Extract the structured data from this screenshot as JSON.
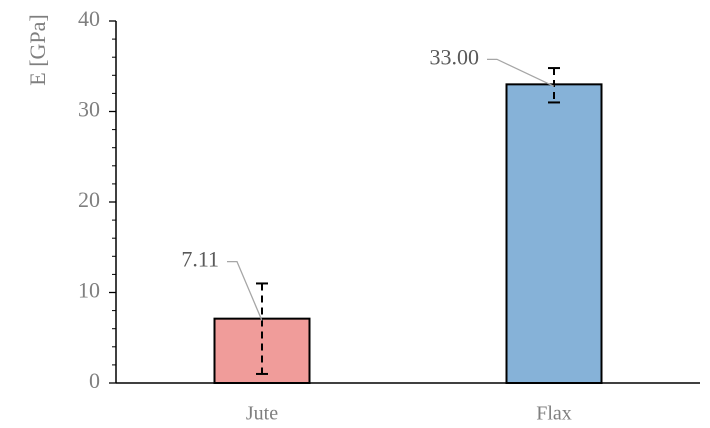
{
  "chart_data": {
    "type": "bar",
    "ylabel": "E [GPa]",
    "ylim": [
      0,
      40
    ],
    "yticks": [
      "0",
      "10",
      "20",
      "30",
      "40"
    ],
    "categories": [
      "Jute",
      "Flax"
    ],
    "values": [
      7.11,
      33.0
    ],
    "error_low": [
      6.11,
      2.0
    ],
    "error_high": [
      3.89,
      1.8
    ],
    "data_labels": [
      "7.11",
      "33.00"
    ],
    "colors": [
      "#f09c9a",
      "#86b2d8"
    ],
    "minor_ticks_per_major": 5,
    "grid": false,
    "legend": "none"
  }
}
